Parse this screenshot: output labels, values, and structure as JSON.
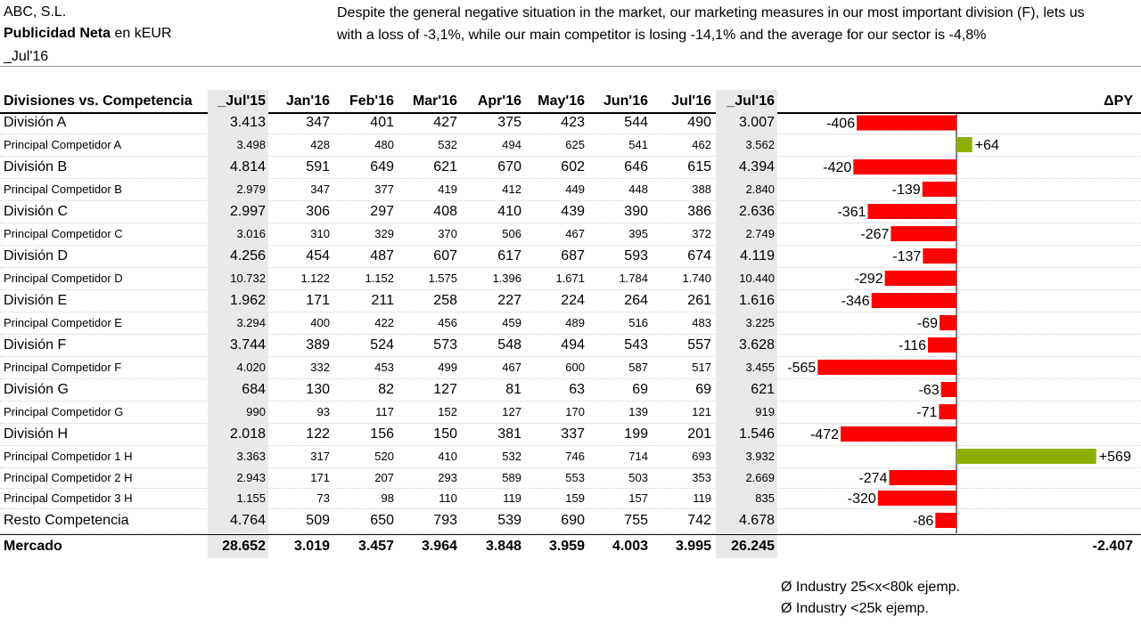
{
  "header": {
    "company": "ABC, S.L.",
    "measure_bold": "Publicidad Neta",
    "measure_rest": " en kEUR",
    "period": "_Jul'16",
    "comment": "Despite the general negative situation in the market, our marketing measures in our most important division (F), lets us with a loss of -3,1%, while our main competitor is losing -14,1% and the average for our sector is -4,8%"
  },
  "table": {
    "title": "Divisiones vs. Competencia",
    "columns": [
      "_Jul'15",
      "Jan'16",
      "Feb'16",
      "Mar'16",
      "Apr'16",
      "May'16",
      "Jun'16",
      "Jul'16",
      "_Jul'16"
    ],
    "delta_header": "ΔPY",
    "rows": [
      {
        "label": "División A",
        "kind": "division",
        "values": [
          "3.413",
          "347",
          "401",
          "427",
          "375",
          "423",
          "544",
          "490",
          "3.007"
        ]
      },
      {
        "label": "Principal Competidor A",
        "kind": "competitor",
        "values": [
          "3.498",
          "428",
          "480",
          "532",
          "494",
          "625",
          "541",
          "462",
          "3.562"
        ]
      },
      {
        "label": "División B",
        "kind": "division",
        "values": [
          "4.814",
          "591",
          "649",
          "621",
          "670",
          "602",
          "646",
          "615",
          "4.394"
        ]
      },
      {
        "label": "Principal Competidor B",
        "kind": "competitor",
        "values": [
          "2.979",
          "347",
          "377",
          "419",
          "412",
          "449",
          "448",
          "388",
          "2.840"
        ]
      },
      {
        "label": "División C",
        "kind": "division",
        "values": [
          "2.997",
          "306",
          "297",
          "408",
          "410",
          "439",
          "390",
          "386",
          "2.636"
        ]
      },
      {
        "label": "Principal Competidor C",
        "kind": "competitor",
        "values": [
          "3.016",
          "310",
          "329",
          "370",
          "506",
          "467",
          "395",
          "372",
          "2.749"
        ]
      },
      {
        "label": "División D",
        "kind": "division",
        "values": [
          "4.256",
          "454",
          "487",
          "607",
          "617",
          "687",
          "593",
          "674",
          "4.119"
        ]
      },
      {
        "label": "Principal Competidor D",
        "kind": "competitor",
        "values": [
          "10.732",
          "1.122",
          "1.152",
          "1.575",
          "1.396",
          "1.671",
          "1.784",
          "1.740",
          "10.440"
        ]
      },
      {
        "label": "División E",
        "kind": "division",
        "values": [
          "1.962",
          "171",
          "211",
          "258",
          "227",
          "224",
          "264",
          "261",
          "1.616"
        ]
      },
      {
        "label": "Principal Competidor E",
        "kind": "competitor",
        "values": [
          "3.294",
          "400",
          "422",
          "456",
          "459",
          "489",
          "516",
          "483",
          "3.225"
        ]
      },
      {
        "label": "División F",
        "kind": "division",
        "values": [
          "3.744",
          "389",
          "524",
          "573",
          "548",
          "494",
          "543",
          "557",
          "3.628"
        ]
      },
      {
        "label": "Principal Competidor F",
        "kind": "competitor",
        "values": [
          "4.020",
          "332",
          "453",
          "499",
          "467",
          "600",
          "587",
          "517",
          "3.455"
        ]
      },
      {
        "label": "División G",
        "kind": "division",
        "values": [
          "684",
          "130",
          "82",
          "127",
          "81",
          "63",
          "69",
          "69",
          "621"
        ]
      },
      {
        "label": "Principal Competidor G",
        "kind": "competitor",
        "values": [
          "990",
          "93",
          "117",
          "152",
          "127",
          "170",
          "139",
          "121",
          "919"
        ]
      },
      {
        "label": "División H",
        "kind": "division",
        "values": [
          "2.018",
          "122",
          "156",
          "150",
          "381",
          "337",
          "199",
          "201",
          "1.546"
        ]
      },
      {
        "label": "Principal Competidor 1 H",
        "kind": "competitor",
        "values": [
          "3.363",
          "317",
          "520",
          "410",
          "532",
          "746",
          "714",
          "693",
          "3.932"
        ]
      },
      {
        "label": "Principal Competidor 2 H",
        "kind": "competitor",
        "values": [
          "2.943",
          "171",
          "207",
          "293",
          "589",
          "553",
          "503",
          "353",
          "2.669"
        ]
      },
      {
        "label": "Principal Competidor 3 H",
        "kind": "competitor",
        "values": [
          "1.155",
          "73",
          "98",
          "110",
          "119",
          "159",
          "157",
          "119",
          "835"
        ]
      },
      {
        "label": "Resto Competencia",
        "kind": "division",
        "values": [
          "4.764",
          "509",
          "650",
          "793",
          "539",
          "690",
          "755",
          "742",
          "4.678"
        ]
      }
    ],
    "total": {
      "label": "Mercado",
      "values": [
        "28.652",
        "3.019",
        "3.457",
        "3.964",
        "3.848",
        "3.959",
        "4.003",
        "3.995",
        "26.245"
      ],
      "delta": "-2.407"
    }
  },
  "chart_data": {
    "type": "bar",
    "orientation": "horizontal",
    "title": "ΔPY",
    "categories": [
      "División A",
      "Principal Competidor A",
      "División B",
      "Principal Competidor B",
      "División C",
      "Principal Competidor C",
      "División D",
      "Principal Competidor D",
      "División E",
      "Principal Competidor E",
      "División F",
      "Principal Competidor F",
      "División G",
      "Principal Competidor G",
      "División H",
      "Principal Competidor 1 H",
      "Principal Competidor 2 H",
      "Principal Competidor 3 H",
      "Resto Competencia"
    ],
    "values": [
      -406,
      64,
      -420,
      -139,
      -361,
      -267,
      -137,
      -292,
      -346,
      -69,
      -116,
      -565,
      -63,
      -71,
      -472,
      569,
      -274,
      -320,
      -86
    ],
    "labels": [
      "-406",
      "+64",
      "-420",
      "-139",
      "-361",
      "-267",
      "-137",
      "-292",
      "-346",
      "-69",
      "-116",
      "-565",
      "-63",
      "-71",
      "-472",
      "+569",
      "-274",
      "-320",
      "-86"
    ],
    "colors": {
      "negative": "#ff0000",
      "positive": "#8db000",
      "axis": "#000000"
    }
  },
  "footnotes": [
    "Ø Industry 25<x<80k ejemp.",
    "Ø Industry <25k ejemp."
  ]
}
